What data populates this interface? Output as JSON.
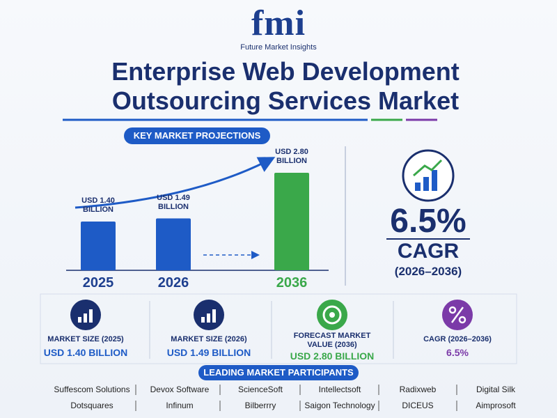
{
  "header": {
    "logo": "fmi",
    "brand": "Future Market Insights",
    "title": "Enterprise Web Development Outsourcing Services Market"
  },
  "chart_data": {
    "type": "bar",
    "title": "KEY MARKET PROJECTIONS",
    "categories": [
      "2025",
      "2026",
      "2036"
    ],
    "values": [
      1.4,
      1.49,
      2.8
    ],
    "value_labels": [
      "USD 1.40 BILLION",
      "USD 1.49 BILLION",
      "USD 2.80 BILLION"
    ],
    "colors": [
      "#1e5bc6",
      "#1e5bc6",
      "#3aa84a"
    ]
  },
  "cagr": {
    "value": "6.5%",
    "label": "CAGR",
    "period": "(2026–2036)"
  },
  "stats": [
    {
      "label": "MARKET SIZE (2025)",
      "value": "USD 1.40 BILLION"
    },
    {
      "label": "MARKET SIZE (2026)",
      "value": "USD 1.49 BILLION"
    },
    {
      "label": "FORECAST MARKET VALUE (2036)",
      "value": "USD 2.80 BILLION"
    },
    {
      "label": "CAGR (2026–2036)",
      "value": "6.5%"
    }
  ],
  "participants": {
    "title": "LEADING MARKET PARTICIPANTS",
    "companies": [
      "Suffescom Solutions",
      "Devox Software",
      "ScienceSoft",
      "Intellectsoft",
      "Radixweb",
      "Digital Silk",
      "Dotsquares",
      "Infinum",
      "Bilberrry",
      "Saigon Technology",
      "DICEUS",
      "Aimprosoft"
    ]
  }
}
